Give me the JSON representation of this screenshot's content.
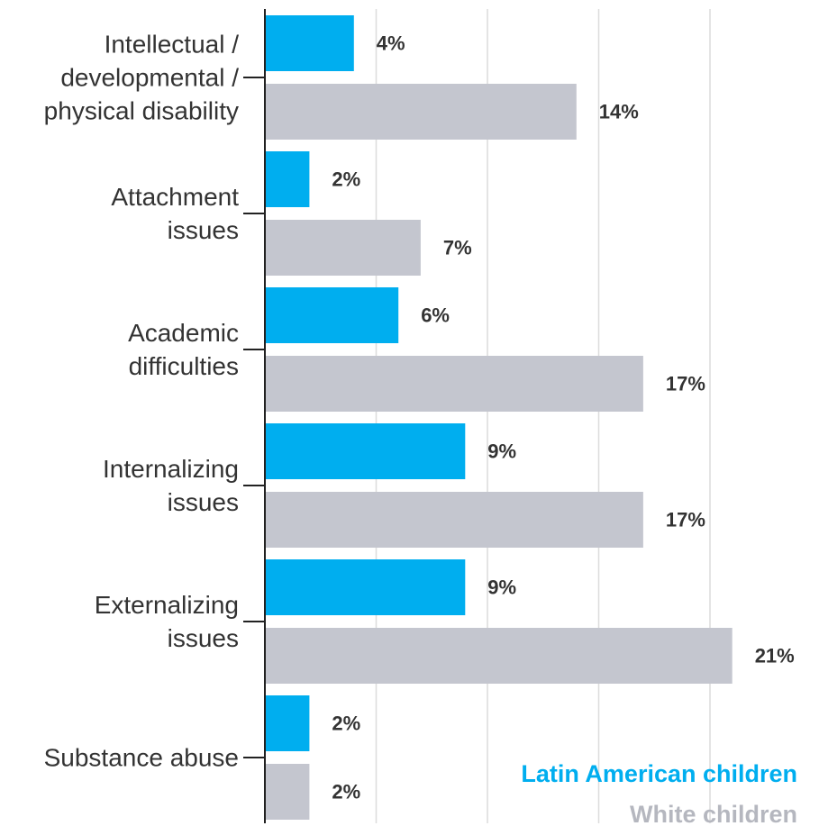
{
  "chart_data": {
    "type": "bar",
    "orientation": "horizontal",
    "categories": [
      [
        "Intellectual /",
        "developmental /",
        "physical disability"
      ],
      [
        "Attachment",
        "issues"
      ],
      [
        "Academic",
        "difficulties"
      ],
      [
        "Internalizing",
        "issues"
      ],
      [
        "Externalizing",
        "issues"
      ],
      [
        "Substance abuse"
      ]
    ],
    "series": [
      {
        "name": "Latin American children",
        "color": "#00aeef",
        "values": [
          4,
          2,
          6,
          9,
          9,
          2
        ],
        "labels": [
          "4%",
          "2%",
          "6%",
          "9%",
          "9%",
          "2%"
        ]
      },
      {
        "name": "White children",
        "color": "#c4c6cf",
        "values": [
          14,
          7,
          17,
          17,
          21,
          2
        ],
        "labels": [
          "14%",
          "7%",
          "17%",
          "17%",
          "21%",
          "2%"
        ]
      }
    ],
    "xlim": [
      0,
      24
    ],
    "grid": true,
    "legend_position": "bottom-right"
  }
}
